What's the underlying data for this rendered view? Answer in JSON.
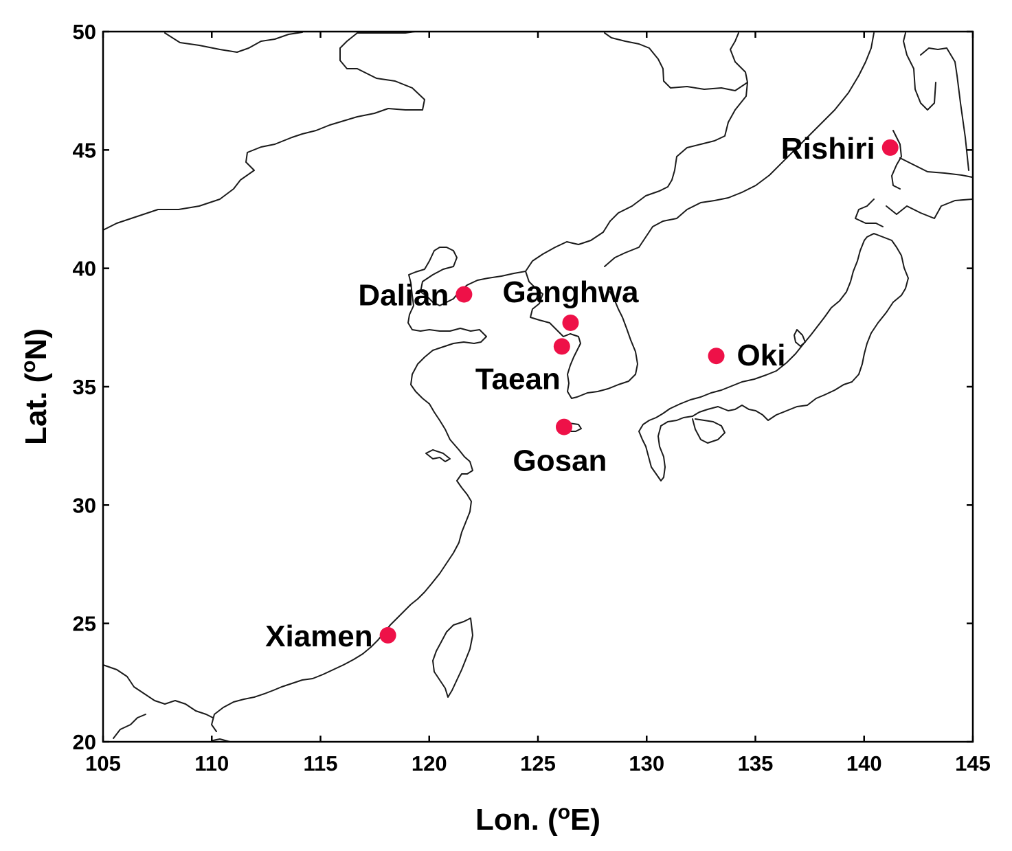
{
  "map": {
    "x_axis": {
      "label": "Lon. (",
      "label_sup": "o",
      "label_end": "E)",
      "range": [
        105,
        145
      ],
      "ticks": [
        105,
        110,
        115,
        120,
        125,
        130,
        135,
        140,
        145
      ]
    },
    "y_axis": {
      "label": "Lat. (",
      "label_sup": "o",
      "label_end": "N)",
      "range": [
        20,
        50
      ],
      "ticks": [
        20,
        25,
        30,
        35,
        40,
        45,
        50
      ]
    },
    "marker_color": "#ee1148",
    "sites": [
      {
        "name": "Rishiri",
        "lon": 141.2,
        "lat": 45.1,
        "label_side": "left"
      },
      {
        "name": "Dalian",
        "lon": 121.6,
        "lat": 38.9,
        "label_side": "left"
      },
      {
        "name": "Ganghwa",
        "lon": 126.5,
        "lat": 37.7,
        "label_side": "above"
      },
      {
        "name": "Taean",
        "lon": 126.1,
        "lat": 36.7,
        "label_side": "below-left"
      },
      {
        "name": "Oki",
        "lon": 133.2,
        "lat": 36.3,
        "label_side": "right"
      },
      {
        "name": "Gosan",
        "lon": 126.2,
        "lat": 33.3,
        "label_side": "below"
      },
      {
        "name": "Xiamen",
        "lon": 118.1,
        "lat": 24.5,
        "label_side": "left"
      }
    ]
  }
}
